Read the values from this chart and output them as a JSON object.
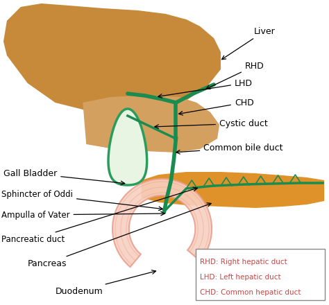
{
  "background_color": "#ffffff",
  "liver_color": "#c68a3a",
  "liver_highlight_color": "#d4a060",
  "liver_shadow_color": "#a06828",
  "pancreas_color": "#e0922a",
  "duodenum_fill": "#f8d0c0",
  "duodenum_line": "#e8a090",
  "gallbladder_fill": "#e8f5e2",
  "gallbladder_outline": "#2a9d5c",
  "duct_color": "#1a8c50",
  "text_color": "#000000",
  "legend_border": "#888888",
  "legend_text": "#cc4444",
  "legend_lines": [
    "RHD: Right hepatic duct",
    "LHD: Left hepatic duct",
    "CHD: Common hepatic duct"
  ]
}
